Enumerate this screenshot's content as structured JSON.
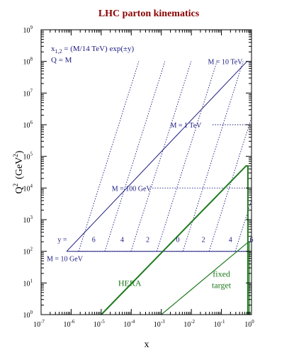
{
  "chart_data": {
    "type": "line",
    "title": "LHC parton kinematics",
    "xlabel": "x",
    "ylabel": "Q",
    "ylabel_sup": "2",
    "ylabel_unit": "(GeV",
    "ylabel_unit_sup": "2",
    "ylabel_unit_close": ")",
    "x_scale": "log",
    "y_scale": "log",
    "xlim_log10": [
      -7,
      0
    ],
    "ylim_log10": [
      0,
      9
    ],
    "x_ticks": [
      {
        "exp": -7,
        "base": "10",
        "sup": "-7"
      },
      {
        "exp": -6,
        "base": "10",
        "sup": "-6"
      },
      {
        "exp": -5,
        "base": "10",
        "sup": "-5"
      },
      {
        "exp": -4,
        "base": "10",
        "sup": "-4"
      },
      {
        "exp": -3,
        "base": "10",
        "sup": "-3"
      },
      {
        "exp": -2,
        "base": "10",
        "sup": "-2"
      },
      {
        "exp": -1,
        "base": "10",
        "sup": "-1"
      },
      {
        "exp": 0,
        "base": "10",
        "sup": "0"
      }
    ],
    "y_ticks": [
      {
        "exp": 0,
        "base": "10",
        "sup": "0"
      },
      {
        "exp": 1,
        "base": "10",
        "sup": "1"
      },
      {
        "exp": 2,
        "base": "10",
        "sup": "2"
      },
      {
        "exp": 3,
        "base": "10",
        "sup": "3"
      },
      {
        "exp": 4,
        "base": "10",
        "sup": "4"
      },
      {
        "exp": 5,
        "base": "10",
        "sup": "5"
      },
      {
        "exp": 6,
        "base": "10",
        "sup": "6"
      },
      {
        "exp": 7,
        "base": "10",
        "sup": "7"
      },
      {
        "exp": 8,
        "base": "10",
        "sup": "8"
      },
      {
        "exp": 9,
        "base": "10",
        "sup": "9"
      }
    ],
    "formula": {
      "line1_a": "x",
      "line1_sub": "1,2",
      "line1_b": " = (M/14 TeV) exp(±y)",
      "line2": "Q = M"
    },
    "mass_labels": [
      {
        "text": "M = 10 TeV",
        "x_log10": -1.45,
        "y_log10": 8
      },
      {
        "text": "M = 1 TeV",
        "x_log10": -2.7,
        "y_log10": 6
      },
      {
        "text": "M = 100 GeV",
        "x_log10": -4.65,
        "y_log10": 4
      },
      {
        "text": "M = 10 GeV",
        "x_log10": -6.1,
        "y_log10": 2
      }
    ],
    "mass_lines": [
      {
        "mass_gev": 10000,
        "y_log10": 8,
        "x_from_log10": -0.15,
        "x_to_log10": -0.15
      },
      {
        "mass_gev": 1000,
        "y_log10": 6,
        "x_from_log10": -1.3,
        "x_to_log10": 0
      },
      {
        "mass_gev": 100,
        "y_log10": 4,
        "x_from_log10": -3.3,
        "x_to_log10": 0
      },
      {
        "mass_gev": 10,
        "y_log10": 2,
        "x_from_log10": -5.8,
        "x_to_log10": 0
      }
    ],
    "y_labels": {
      "prefix": "y =",
      "values": [
        "6",
        "4",
        "2",
        "0",
        "2",
        "4",
        "6"
      ],
      "x_log10": [
        -5.25,
        -4.3,
        -3.45,
        -2.45,
        -1.6,
        -0.7,
        0
      ]
    },
    "rapidity_lines": [
      {
        "y": -6,
        "x_at_q10_log10": -5.75,
        "x_at_q10tev_log10": -3.75
      },
      {
        "y": -4,
        "x_at_q10_log10": -4.88,
        "x_at_q10tev_log10": -2.88
      },
      {
        "y": -2,
        "x_at_q10_log10": -4.01,
        "x_at_q10tev_log10": -2.01
      },
      {
        "y": 0,
        "x_at_q10_log10": -3.15,
        "x_at_q10tev_log10": -1.15
      },
      {
        "y": 2,
        "x_at_q10_log10": -2.28,
        "x_at_q10tev_log10": -0.28
      },
      {
        "y": 4,
        "x_at_q10_log10": -1.41,
        "x_at_q10tev_log10": 0.59
      },
      {
        "y": 6,
        "x_at_q10_log10": -0.54,
        "x_at_q10tev_log10": 1.46
      }
    ],
    "lhc_region": {
      "boundary": [
        [
          -6.15,
          2
        ],
        [
          -0.15,
          8
        ],
        [
          -0.15,
          8
        ],
        [
          0,
          8
        ],
        [
          0,
          2
        ],
        [
          -6.15,
          2
        ]
      ]
    },
    "hera_region": {
      "label": "HERA",
      "label_pos_log10": [
        -4.05,
        1
      ],
      "boundary": [
        [
          -5,
          0
        ],
        [
          -0.18,
          4.7
        ],
        [
          -0.12,
          4.7
        ],
        [
          -0.12,
          0
        ]
      ]
    },
    "fixed_target_region": {
      "label_line1": "fixed",
      "label_line2": "target",
      "label_pos_log10": [
        -1,
        1.2
      ],
      "boundary": [
        [
          -3,
          0
        ],
        [
          -0.1,
          2.3
        ],
        [
          -0.07,
          2.3
        ],
        [
          -0.07,
          0
        ]
      ]
    },
    "colors": {
      "lhc": "#1a1a80",
      "hera": "#1f7a1f",
      "title": "#8b0000",
      "axes": "#000000"
    }
  }
}
